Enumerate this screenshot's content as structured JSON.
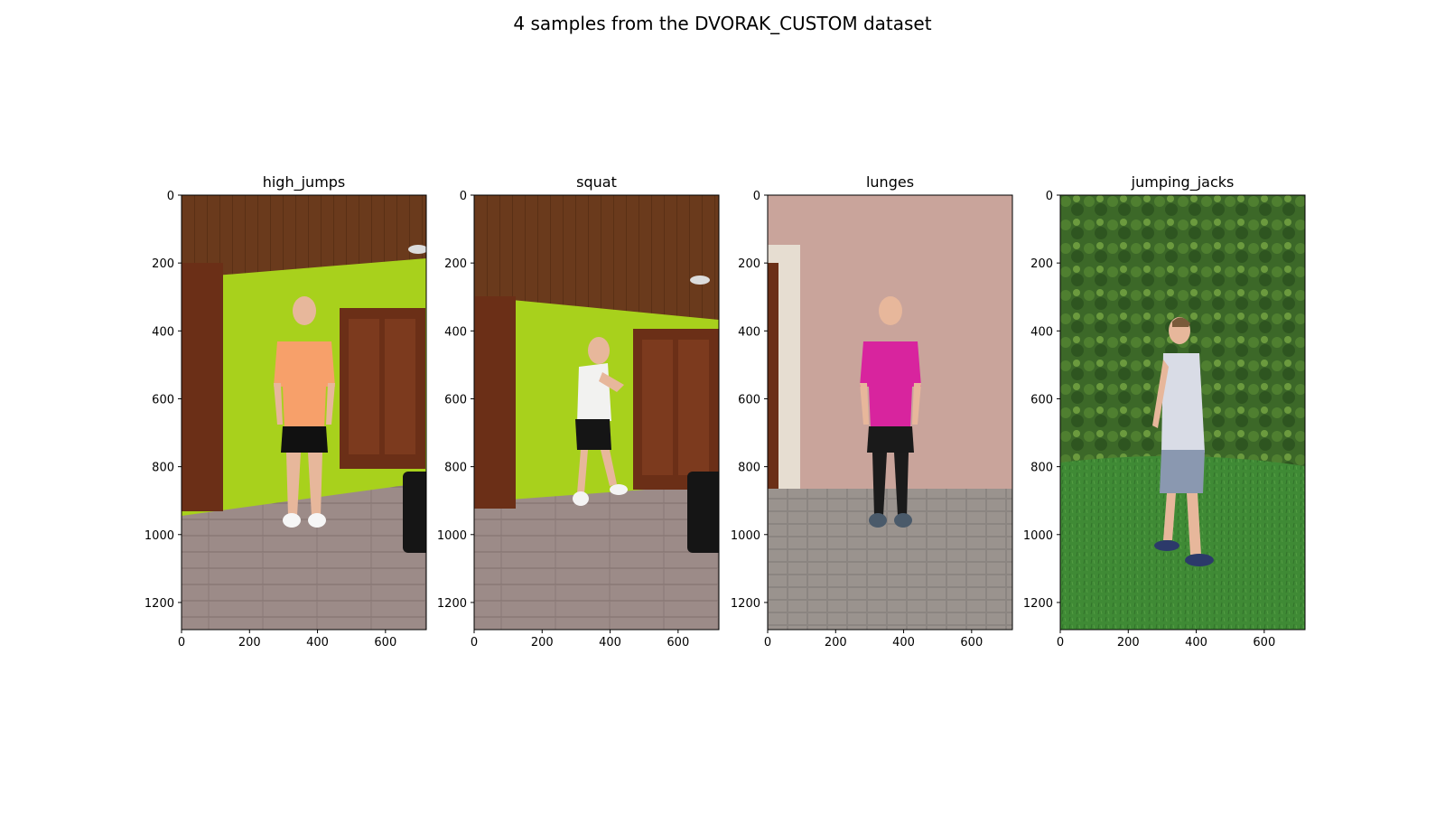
{
  "figure": {
    "suptitle": "4 samples from the DVORAK_CUSTOM dataset"
  },
  "axes_common": {
    "x_ticks": [
      "0",
      "200",
      "400",
      "600"
    ],
    "x_tick_values": [
      0,
      200,
      400,
      600
    ],
    "y_ticks": [
      "0",
      "200",
      "400",
      "600",
      "800",
      "1000",
      "1200"
    ],
    "y_tick_values": [
      0,
      200,
      400,
      600,
      800,
      1000,
      1200
    ],
    "x_range": [
      0,
      720
    ],
    "y_range": [
      0,
      1280
    ]
  },
  "panels": [
    {
      "title": "high_jumps",
      "scene": "indoor",
      "shirt": "#f7a06a",
      "shorts": "#111111",
      "pose": "standing"
    },
    {
      "title": "squat",
      "scene": "indoor",
      "shirt": "#f2f2f0",
      "shorts": "#151515",
      "pose": "squat"
    },
    {
      "title": "lunges",
      "scene": "wall",
      "shirt": "#d8249e",
      "shorts": "#1a1a1a",
      "pose": "standing"
    },
    {
      "title": "jumping_jacks",
      "scene": "garden",
      "shirt": "#d9dce6",
      "shorts": "#8a98b0",
      "pose": "side"
    }
  ],
  "colors": {
    "ceiling": "#6a3a1c",
    "wall_green": "#a8d11c",
    "floor": "#9b8a86",
    "door": "#6b2f17",
    "pink_wall": "#c9a49b",
    "pavement": "#8a8480",
    "hedge": "#3e6b2a",
    "grass": "#3f8a35"
  }
}
